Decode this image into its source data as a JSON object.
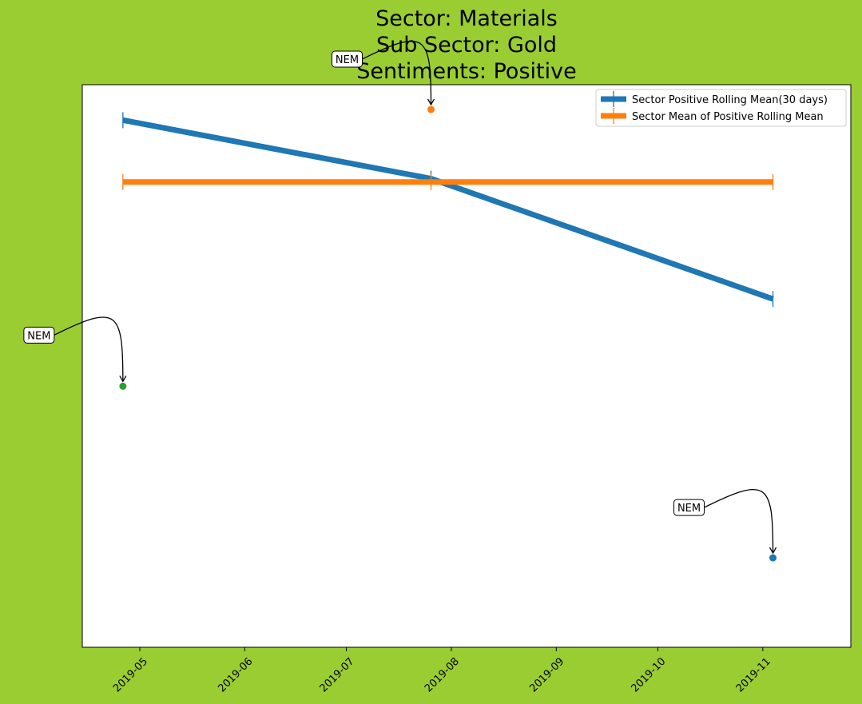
{
  "chart_data": {
    "type": "line",
    "title_lines": [
      "Sector:  Materials",
      "Sub Sector:  Gold",
      "Sentiments:  Positive"
    ],
    "xlabel": "",
    "ylabel": "",
    "x_ticks": [
      "2019-05",
      "2019-06",
      "2019-07",
      "2019-08",
      "2019-09",
      "2019-10",
      "2019-11"
    ],
    "xlim": [
      "2019-04-14",
      "2019-11-27"
    ],
    "ylim": [
      0,
      100
    ],
    "grid": false,
    "y_ticks_visible": false,
    "legend_position": "top-right",
    "series": [
      {
        "name": "Sector Positive Rolling Mean(30 days)",
        "color": "#1f77b4",
        "marker": "vertical-line",
        "points": [
          {
            "x": "2019-04-26",
            "y": 93.7
          },
          {
            "x": "2019-07-26",
            "y": 83.3
          },
          {
            "x": "2019-11-04",
            "y": 61.9
          }
        ]
      },
      {
        "name": "Sector Mean of Positive Rolling Mean",
        "color": "#ff7f0e",
        "marker": "vertical-line",
        "points": [
          {
            "x": "2019-04-26",
            "y": 82.7
          },
          {
            "x": "2019-07-26",
            "y": 82.7
          },
          {
            "x": "2019-11-04",
            "y": 82.7
          }
        ]
      }
    ],
    "scatter_points": [
      {
        "x": "2019-07-26",
        "y": 95.6,
        "color": "#ff7f0e"
      },
      {
        "x": "2019-04-26",
        "y": 46.4,
        "color": "#2ca02c"
      },
      {
        "x": "2019-11-04",
        "y": 15.9,
        "color": "#1f77b4"
      }
    ],
    "annotations": [
      {
        "text": "NEM",
        "x": "2019-07-26",
        "y": 95.6
      },
      {
        "text": "NEM",
        "x": "2019-04-26",
        "y": 46.4
      },
      {
        "text": "NEM",
        "x": "2019-11-04",
        "y": 15.9
      }
    ]
  }
}
